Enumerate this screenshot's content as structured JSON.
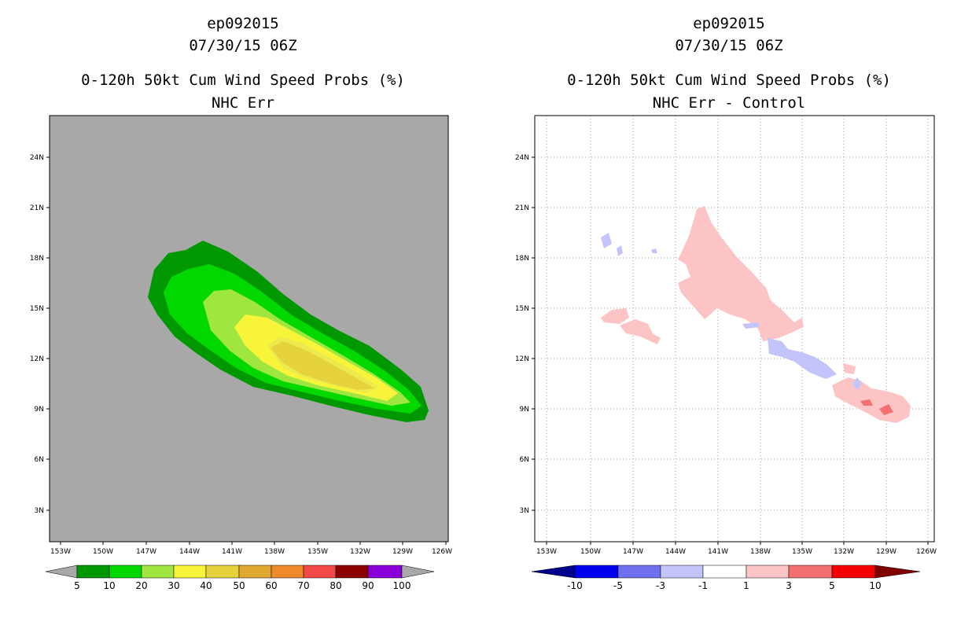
{
  "left": {
    "storm": "ep092015",
    "time": "07/30/15 06Z",
    "product": "0-120h 50kt Cum Wind Speed Probs (%)",
    "subtitle": "NHC Err"
  },
  "right": {
    "storm": "ep092015",
    "time": "07/30/15 06Z",
    "product": "0-120h 50kt Cum Wind Speed Probs (%)",
    "subtitle": "NHC Err - Control"
  },
  "axes": {
    "lon_labels": [
      "153W",
      "150W",
      "147W",
      "144W",
      "141W",
      "138W",
      "135W",
      "132W",
      "129W",
      "126W"
    ],
    "lat_labels": [
      "24N",
      "21N",
      "18N",
      "15N",
      "12N",
      "9N",
      "6N",
      "3N"
    ]
  },
  "legend_left": {
    "labels": [
      "5",
      "10",
      "20",
      "30",
      "40",
      "50",
      "60",
      "70",
      "80",
      "90",
      "100"
    ],
    "colors": [
      "#a8a8a8",
      "#009800",
      "#00d800",
      "#a0e640",
      "#f7f43a",
      "#e6d23c",
      "#e0a830",
      "#ef8a2a",
      "#f24848",
      "#8c0000",
      "#8a00d8",
      "#a8a8a8"
    ]
  },
  "legend_right": {
    "labels": [
      "-10",
      "-5",
      "-3",
      "-1",
      "1",
      "3",
      "5",
      "10"
    ],
    "colors": [
      "#00008c",
      "#0000f0",
      "#7070ee",
      "#c4c4fc",
      "#ffffff",
      "#fcc4c4",
      "#f47070",
      "#f40000",
      "#800000"
    ]
  }
}
